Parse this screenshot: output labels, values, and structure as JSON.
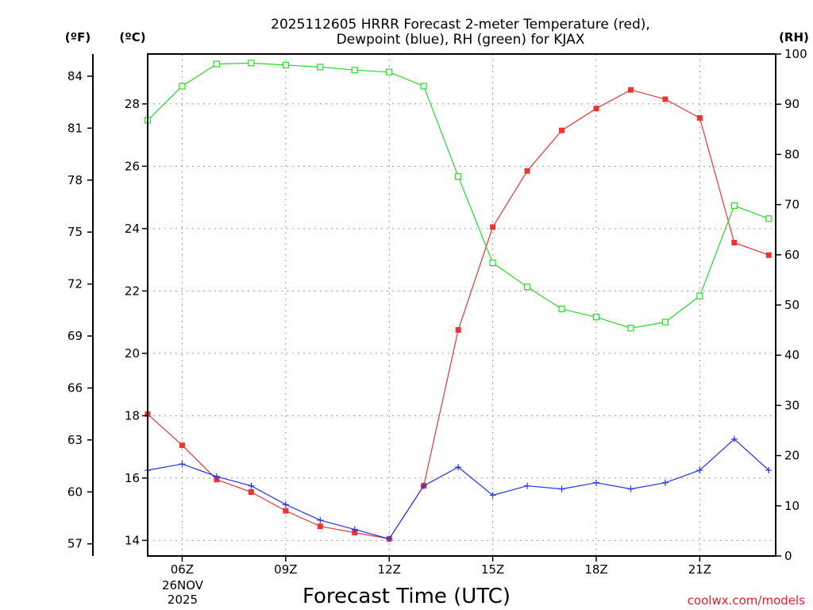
{
  "chart_data": {
    "type": "line",
    "title_lines": [
      "2025112605 HRRR Forecast 2-meter Temperature (red),",
      "Dewpoint (blue), RH (green) for KJAX"
    ],
    "xlabel": "Forecast Time (UTC)",
    "date_lines": [
      "26NOV",
      "2025"
    ],
    "credit": "coolwx.com/models",
    "unit_labels": {
      "fahrenheit": "(ºF)",
      "celsius": "(ºC)",
      "rh": "(RH)"
    },
    "x_hours": [
      5,
      6,
      7,
      8,
      9,
      10,
      11,
      12,
      13,
      14,
      15,
      16,
      17,
      18,
      19,
      20,
      21,
      22,
      23
    ],
    "xlim": [
      5,
      23.2
    ],
    "x_ticks": [
      {
        "hour": 6,
        "label": "06Z"
      },
      {
        "hour": 9,
        "label": "09Z"
      },
      {
        "hour": 12,
        "label": "12Z"
      },
      {
        "hour": 15,
        "label": "15Z"
      },
      {
        "hour": 18,
        "label": "18Z"
      },
      {
        "hour": 21,
        "label": "21Z"
      }
    ],
    "celsius_axis": {
      "range": [
        13.5,
        29.6
      ],
      "ticks": [
        "14",
        "16",
        "18",
        "20",
        "22",
        "24",
        "26",
        "28"
      ]
    },
    "fahrenheit_axis": {
      "ticks": [
        "57",
        "60",
        "63",
        "66",
        "69",
        "72",
        "75",
        "78",
        "81",
        "84"
      ]
    },
    "rh_axis": {
      "range": [
        0,
        100
      ],
      "ticks": [
        "0",
        "10",
        "20",
        "30",
        "40",
        "50",
        "60",
        "70",
        "80",
        "90",
        "100"
      ]
    },
    "colors": {
      "temperature": "#ee3333",
      "dewpoint": "#2233ee",
      "rh": "#22dd22",
      "axis": "#000000"
    },
    "series": [
      {
        "name": "Temperature",
        "axis": "celsius",
        "marker": "filled-square",
        "values": [
          18.05,
          17.05,
          15.95,
          15.55,
          14.95,
          14.45,
          14.25,
          14.05,
          15.75,
          20.75,
          24.05,
          25.85,
          27.15,
          27.85,
          28.45,
          28.15,
          27.55,
          23.55,
          23.15
        ]
      },
      {
        "name": "Dewpoint",
        "axis": "celsius",
        "marker": "plus",
        "values": [
          16.25,
          16.45,
          16.05,
          15.75,
          15.15,
          14.65,
          14.35,
          14.05,
          15.75,
          16.35,
          15.45,
          15.75,
          15.65,
          15.85,
          15.65,
          15.85,
          16.25,
          17.25,
          16.25
        ]
      },
      {
        "name": "RH",
        "axis": "rh",
        "marker": "open-square",
        "values": [
          86.8,
          93.6,
          98.0,
          98.2,
          97.8,
          97.4,
          96.8,
          96.4,
          93.6,
          75.6,
          58.4,
          53.6,
          49.2,
          47.6,
          45.4,
          46.6,
          51.8,
          69.8,
          67.2
        ]
      }
    ]
  }
}
